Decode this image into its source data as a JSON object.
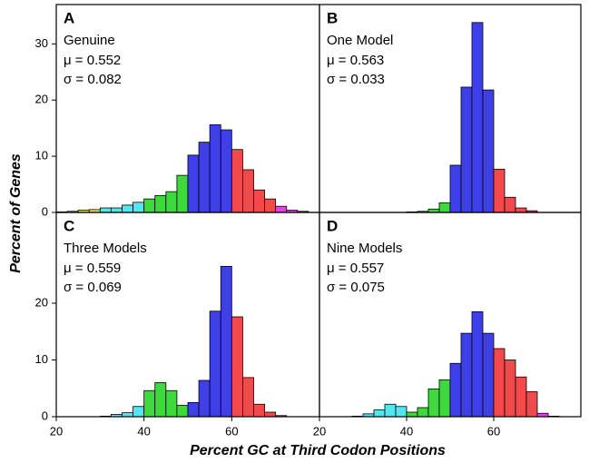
{
  "chart_data": [
    {
      "type": "histogram",
      "label": "A",
      "title": "Genuine",
      "stats": [
        "μ = 0.552",
        "σ = 0.082"
      ],
      "bins": [
        20,
        22.5,
        25,
        27.5,
        30,
        32.5,
        35,
        37.5,
        40,
        42.5,
        45,
        47.5,
        50,
        52.5,
        55,
        57.5,
        60,
        62.5,
        65,
        67.5,
        70,
        72.5,
        75,
        77.5,
        80
      ],
      "values": [
        0.1,
        0.2,
        0.4,
        0.5,
        0.8,
        0.8,
        1.3,
        1.8,
        2.4,
        3.0,
        3.7,
        6.6,
        10.2,
        12.5,
        15.6,
        14.7,
        11.2,
        7.6,
        4.0,
        2.4,
        1.1,
        0.4,
        0.2,
        0
      ],
      "colors": [
        "#f2e24b",
        "#f2e24b",
        "#f2e24b",
        "#f2e24b",
        "#54e6ef",
        "#54e6ef",
        "#54e6ef",
        "#54e6ef",
        "#3fd93f",
        "#3fd93f",
        "#3fd93f",
        "#3fd93f",
        "#3f3fe8",
        "#3f3fe8",
        "#3f3fe8",
        "#3f3fe8",
        "#f24a4a",
        "#f24a4a",
        "#f24a4a",
        "#f24a4a",
        "#e045e0",
        "#e045e0",
        "#e045e0",
        "#e045e0"
      ],
      "xlim": [
        20,
        80
      ],
      "ylim": [
        0,
        37
      ],
      "yticks": [
        0,
        10,
        20,
        30
      ]
    },
    {
      "type": "histogram",
      "label": "B",
      "title": "One Model",
      "stats": [
        "μ = 0.563",
        "σ = 0.033"
      ],
      "bins": [
        20,
        22.5,
        25,
        27.5,
        30,
        32.5,
        35,
        37.5,
        40,
        42.5,
        45,
        47.5,
        50,
        52.5,
        55,
        57.5,
        60,
        62.5,
        65,
        67.5,
        70,
        72.5,
        75,
        77.5,
        80
      ],
      "values": [
        0,
        0,
        0,
        0,
        0,
        0,
        0,
        0,
        0.1,
        0.2,
        0.6,
        1.7,
        8.4,
        22.3,
        33.8,
        21.8,
        7.7,
        2.7,
        0.8,
        0.3,
        0,
        0,
        0,
        0
      ],
      "colors": [
        "#f2e24b",
        "#f2e24b",
        "#f2e24b",
        "#f2e24b",
        "#54e6ef",
        "#54e6ef",
        "#54e6ef",
        "#54e6ef",
        "#3fd93f",
        "#3fd93f",
        "#3fd93f",
        "#3fd93f",
        "#3f3fe8",
        "#3f3fe8",
        "#3f3fe8",
        "#3f3fe8",
        "#f24a4a",
        "#f24a4a",
        "#f24a4a",
        "#f24a4a",
        "#e045e0",
        "#e045e0",
        "#e045e0",
        "#e045e0"
      ],
      "xlim": [
        20,
        80
      ],
      "ylim": [
        0,
        37
      ]
    },
    {
      "type": "histogram",
      "label": "C",
      "title": "Three Models",
      "stats": [
        "μ = 0.559",
        "σ = 0.069"
      ],
      "bins": [
        20,
        22.5,
        25,
        27.5,
        30,
        32.5,
        35,
        37.5,
        40,
        42.5,
        45,
        47.5,
        50,
        52.5,
        55,
        57.5,
        60,
        62.5,
        65,
        67.5,
        70,
        72.5,
        75,
        77.5,
        80
      ],
      "values": [
        0,
        0,
        0,
        0,
        0.1,
        0.4,
        0.7,
        1.8,
        4.6,
        6.0,
        4.6,
        2.0,
        2.5,
        6.4,
        18.6,
        26.5,
        17.6,
        6.9,
        2.2,
        0.8,
        0.2,
        0,
        0,
        0
      ],
      "colors": [
        "#f2e24b",
        "#f2e24b",
        "#f2e24b",
        "#f2e24b",
        "#54e6ef",
        "#54e6ef",
        "#54e6ef",
        "#54e6ef",
        "#3fd93f",
        "#3fd93f",
        "#3fd93f",
        "#3fd93f",
        "#3f3fe8",
        "#3f3fe8",
        "#3f3fe8",
        "#3f3fe8",
        "#f24a4a",
        "#f24a4a",
        "#f24a4a",
        "#f24a4a",
        "#e045e0",
        "#e045e0",
        "#e045e0",
        "#e045e0"
      ],
      "xlim": [
        20,
        80
      ],
      "ylim": [
        0,
        36
      ],
      "yticks": [
        0,
        10,
        20
      ],
      "xticks": [
        20,
        40,
        60
      ]
    },
    {
      "type": "histogram",
      "label": "D",
      "title": "Nine Models",
      "stats": [
        "μ = 0.557",
        "σ = 0.075"
      ],
      "bins": [
        20,
        22.5,
        25,
        27.5,
        30,
        32.5,
        35,
        37.5,
        40,
        42.5,
        45,
        47.5,
        50,
        52.5,
        55,
        57.5,
        60,
        62.5,
        65,
        67.5,
        70,
        72.5,
        75,
        77.5,
        80
      ],
      "values": [
        0,
        0,
        0,
        0.1,
        0.5,
        1.2,
        2.2,
        1.8,
        0.8,
        1.6,
        4.9,
        6.5,
        9.4,
        14.7,
        18.5,
        14.7,
        12.0,
        10.0,
        7.0,
        4.4,
        0.6,
        0.1,
        0,
        0
      ],
      "colors": [
        "#f2e24b",
        "#f2e24b",
        "#f2e24b",
        "#f2e24b",
        "#54e6ef",
        "#54e6ef",
        "#54e6ef",
        "#54e6ef",
        "#3fd93f",
        "#3fd93f",
        "#3fd93f",
        "#3fd93f",
        "#3f3fe8",
        "#3f3fe8",
        "#3f3fe8",
        "#3f3fe8",
        "#f24a4a",
        "#f24a4a",
        "#f24a4a",
        "#f24a4a",
        "#e045e0",
        "#e045e0",
        "#e045e0",
        "#e045e0"
      ],
      "xlim": [
        20,
        80
      ],
      "ylim": [
        0,
        36
      ],
      "xticks": [
        20,
        40,
        60
      ]
    }
  ],
  "axis_labels": {
    "x": "Percent GC at Third Codon Positions",
    "y": "Percent of Genes"
  }
}
